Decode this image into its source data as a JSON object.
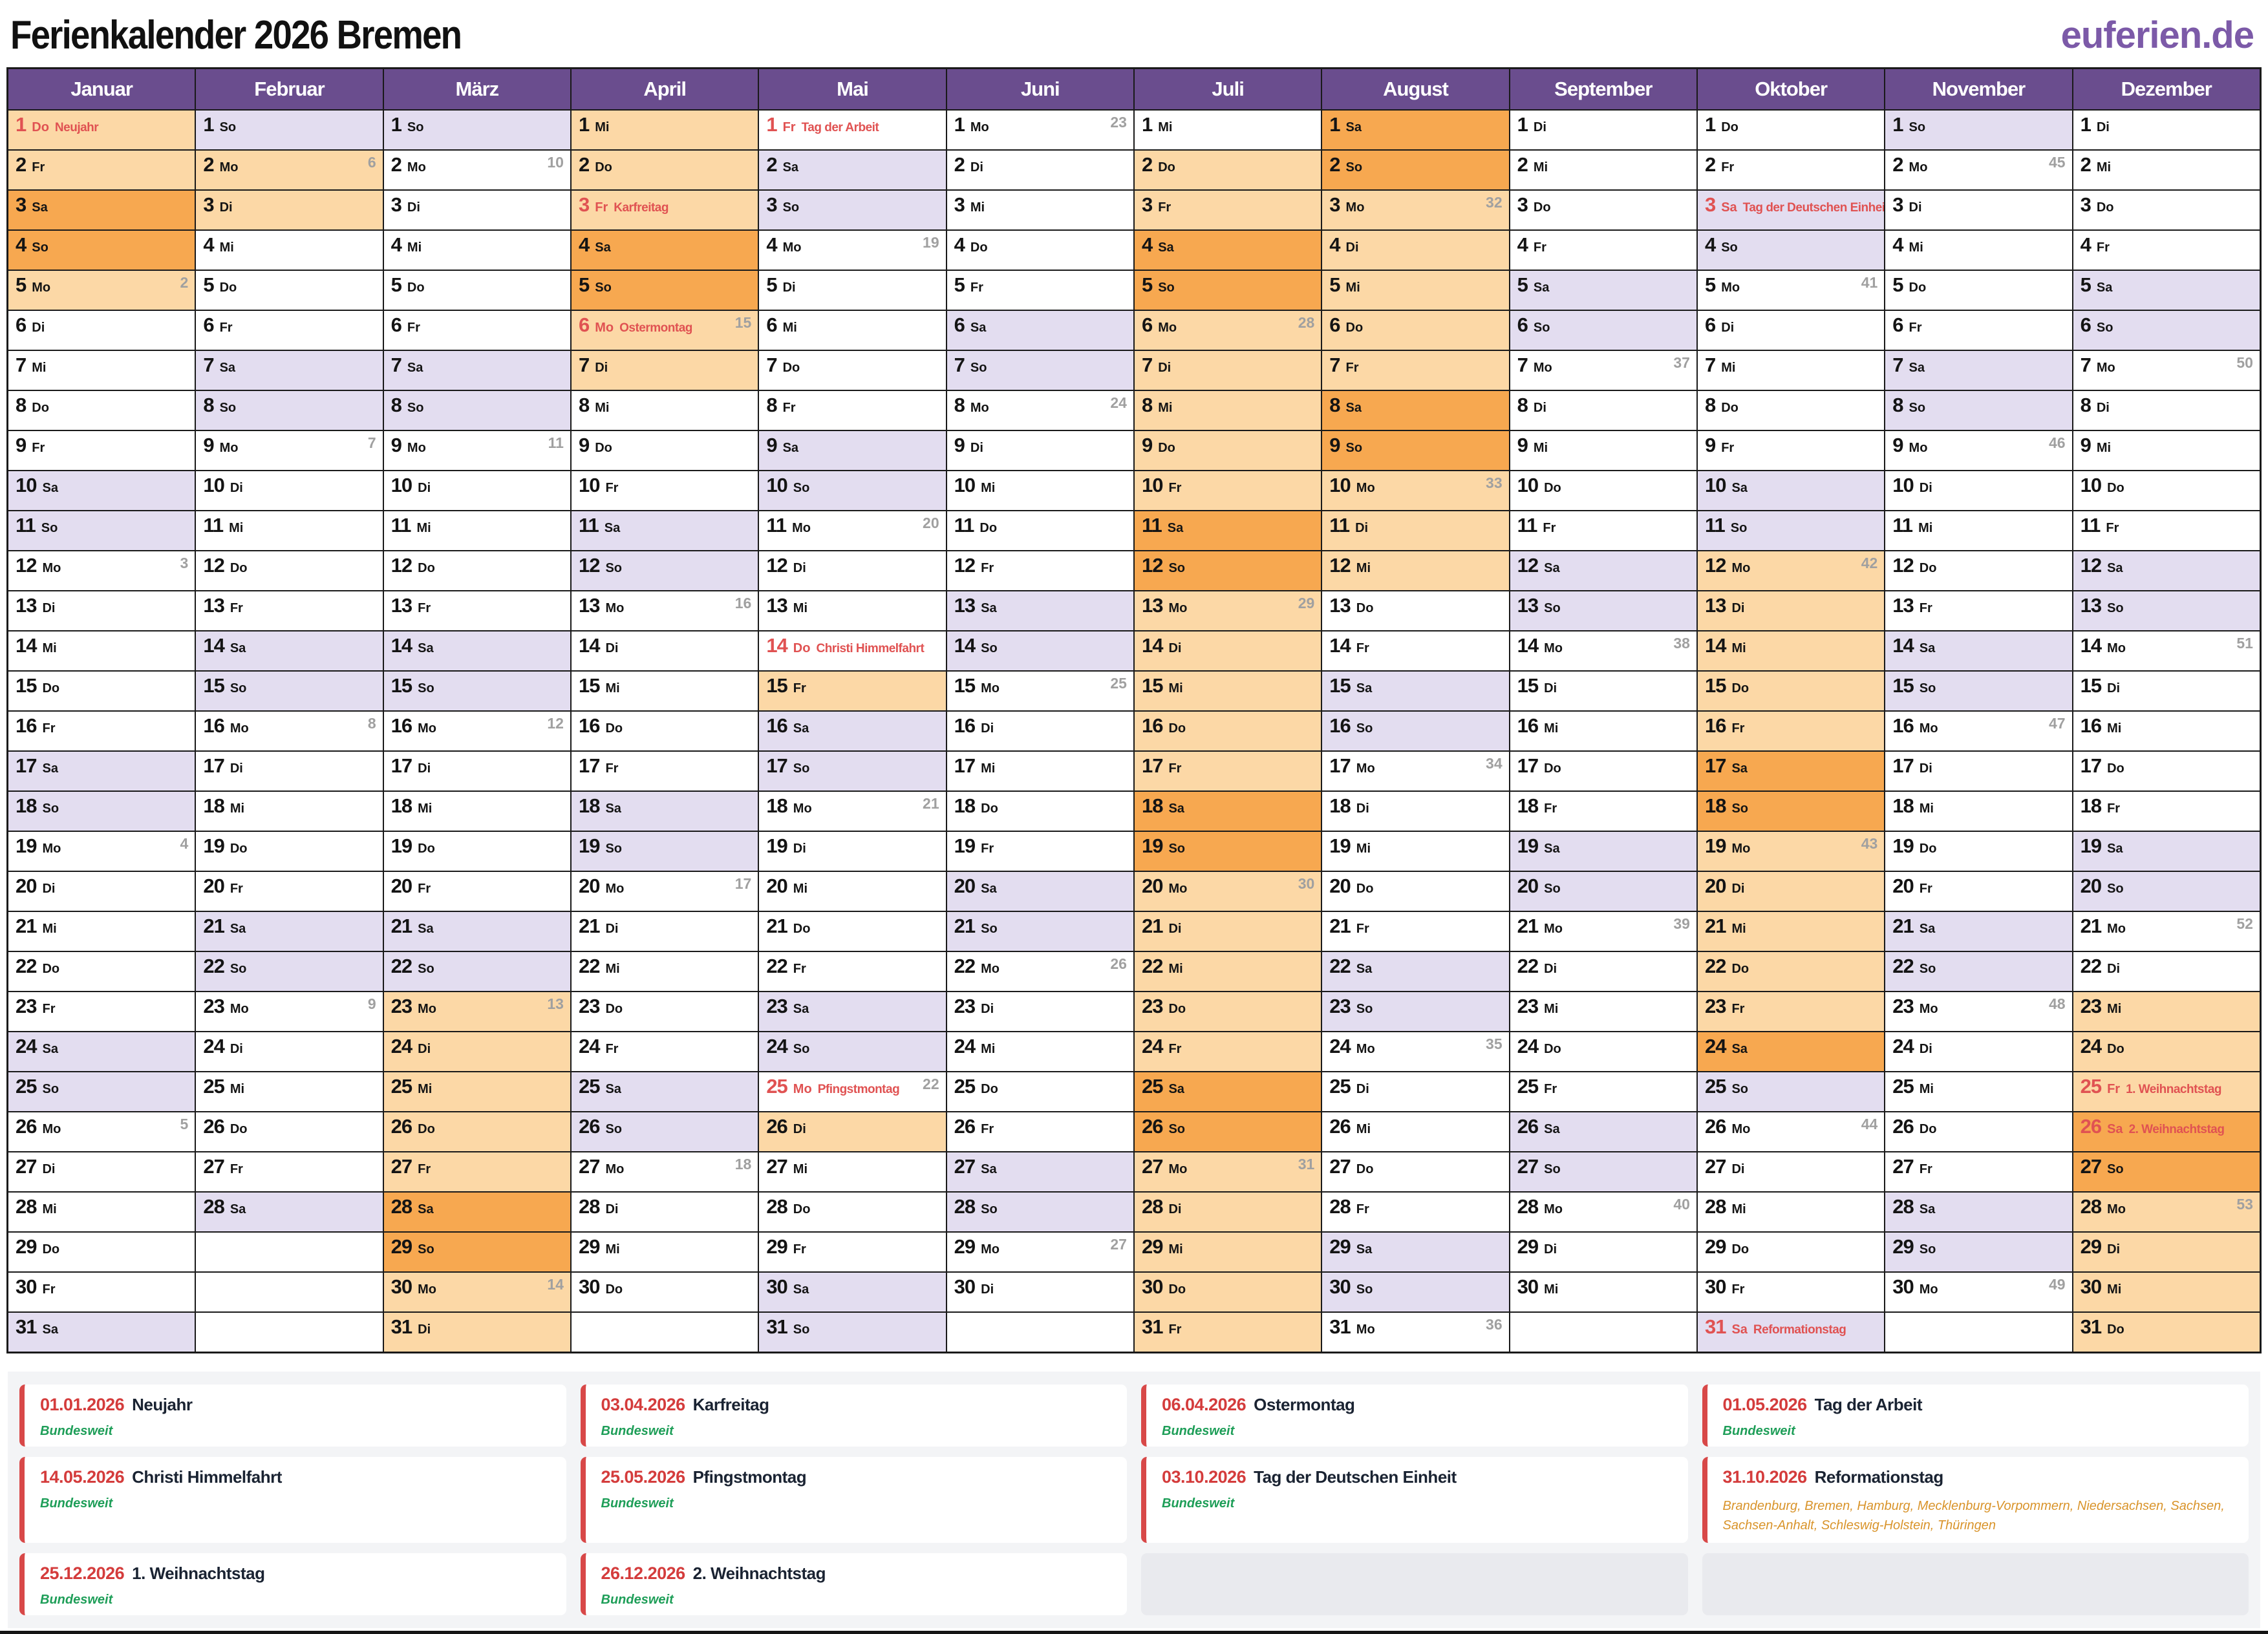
{
  "page": {
    "title": "Ferienkalender 2026 Bremen",
    "logo": "euferien.de"
  },
  "colors": {
    "title_text": "#111111",
    "header_purple": "#6a4d8e",
    "logo_purple": "#7c5aa8",
    "grid_line": "#1a1a1a",
    "weekend_bg": "#e3ddf0",
    "vacation_bg": "#fcd8a6",
    "vacation_weekend_bg": "#f7a850",
    "holiday_text": "#e05252",
    "week_number": "#a0a0a0",
    "legend_panel_bg": "#f3f4f6",
    "legend_card_bg": "#ffffff",
    "legend_card_border": "#d84848",
    "legend_date": "#d43c3c",
    "legend_name": "#1a2332",
    "legend_nationwide": "#1e9e58",
    "legend_states": "#d9942b",
    "legend_empty_bg": "#e9eaee"
  },
  "calendar": {
    "year": 2026,
    "weekday_abbr_by_getday": [
      "So",
      "Mo",
      "Di",
      "Mi",
      "Do",
      "Fr",
      "Sa"
    ],
    "months": [
      {
        "name": "Januar",
        "days": 31,
        "first_getday": 4,
        "weeks": {
          "5": 2,
          "12": 3,
          "19": 4,
          "26": 5
        },
        "holidays": {
          "1": "Neujahr"
        },
        "vacation_ranges": [
          [
            1,
            5
          ]
        ]
      },
      {
        "name": "Februar",
        "days": 28,
        "first_getday": 0,
        "weeks": {
          "2": 6,
          "9": 7,
          "16": 8,
          "23": 9
        },
        "holidays": {},
        "vacation_ranges": [
          [
            2,
            3
          ]
        ]
      },
      {
        "name": "März",
        "days": 31,
        "first_getday": 0,
        "weeks": {
          "2": 10,
          "9": 11,
          "16": 12,
          "23": 13,
          "30": 14
        },
        "holidays": {},
        "vacation_ranges": [
          [
            23,
            31
          ]
        ]
      },
      {
        "name": "April",
        "days": 30,
        "first_getday": 3,
        "weeks": {
          "6": 15,
          "13": 16,
          "20": 17,
          "27": 18
        },
        "holidays": {
          "3": "Karfreitag",
          "6": "Ostermontag"
        },
        "vacation_ranges": [
          [
            1,
            7
          ]
        ]
      },
      {
        "name": "Mai",
        "days": 31,
        "first_getday": 5,
        "weeks": {
          "4": 19,
          "11": 20,
          "18": 21,
          "25": 22
        },
        "holidays": {
          "1": "Tag der Arbeit",
          "14": "Christi Himmelfahrt",
          "25": "Pfingstmontag"
        },
        "vacation_ranges": [
          [
            15,
            15
          ],
          [
            26,
            26
          ]
        ]
      },
      {
        "name": "Juni",
        "days": 30,
        "first_getday": 1,
        "weeks": {
          "1": 23,
          "8": 24,
          "15": 25,
          "22": 26,
          "29": 27
        },
        "holidays": {},
        "vacation_ranges": []
      },
      {
        "name": "Juli",
        "days": 31,
        "first_getday": 3,
        "weeks": {
          "6": 28,
          "13": 29,
          "20": 30,
          "27": 31
        },
        "holidays": {},
        "vacation_ranges": [
          [
            2,
            31
          ]
        ]
      },
      {
        "name": "August",
        "days": 31,
        "first_getday": 6,
        "weeks": {
          "3": 32,
          "10": 33,
          "17": 34,
          "24": 35,
          "31": 36
        },
        "holidays": {},
        "vacation_ranges": [
          [
            1,
            12
          ]
        ]
      },
      {
        "name": "September",
        "days": 30,
        "first_getday": 2,
        "weeks": {
          "7": 37,
          "14": 38,
          "21": 39,
          "28": 40
        },
        "holidays": {},
        "vacation_ranges": []
      },
      {
        "name": "Oktober",
        "days": 31,
        "first_getday": 4,
        "weeks": {
          "5": 41,
          "12": 42,
          "19": 43,
          "26": 44
        },
        "holidays": {
          "3": "Tag der Deutschen Einheit",
          "31": "Reformationstag"
        },
        "vacation_ranges": [
          [
            12,
            24
          ]
        ]
      },
      {
        "name": "November",
        "days": 30,
        "first_getday": 0,
        "weeks": {
          "2": 45,
          "9": 46,
          "16": 47,
          "23": 48,
          "30": 49
        },
        "holidays": {},
        "vacation_ranges": []
      },
      {
        "name": "Dezember",
        "days": 31,
        "first_getday": 2,
        "weeks": {
          "7": 50,
          "14": 51,
          "21": 52,
          "28": 53
        },
        "holidays": {
          "25": "1. Weihnachtstag",
          "26": "2. Weihnachtstag"
        },
        "vacation_ranges": [
          [
            23,
            31
          ]
        ]
      }
    ]
  },
  "legend": {
    "items": [
      {
        "date": "01.01.2026",
        "name": "Neujahr",
        "scope": "Bundesweit",
        "scope_type": "nationwide"
      },
      {
        "date": "03.04.2026",
        "name": "Karfreitag",
        "scope": "Bundesweit",
        "scope_type": "nationwide"
      },
      {
        "date": "06.04.2026",
        "name": "Ostermontag",
        "scope": "Bundesweit",
        "scope_type": "nationwide"
      },
      {
        "date": "01.05.2026",
        "name": "Tag der Arbeit",
        "scope": "Bundesweit",
        "scope_type": "nationwide"
      },
      {
        "date": "14.05.2026",
        "name": "Christi Himmelfahrt",
        "scope": "Bundesweit",
        "scope_type": "nationwide"
      },
      {
        "date": "25.05.2026",
        "name": "Pfingstmontag",
        "scope": "Bundesweit",
        "scope_type": "nationwide"
      },
      {
        "date": "03.10.2026",
        "name": "Tag der Deutschen Einheit",
        "scope": "Bundesweit",
        "scope_type": "nationwide"
      },
      {
        "date": "31.10.2026",
        "name": "Reformationstag",
        "scope": "Brandenburg, Bremen, Hamburg, Mecklenburg-Vorpommern, Niedersachsen, Sachsen, Sachsen-Anhalt, Schleswig-Holstein, Thüringen",
        "scope_type": "states"
      },
      {
        "date": "25.12.2026",
        "name": "1. Weihnachtstag",
        "scope": "Bundesweit",
        "scope_type": "nationwide"
      },
      {
        "date": "26.12.2026",
        "name": "2. Weihnachtstag",
        "scope": "Bundesweit",
        "scope_type": "nationwide"
      }
    ],
    "empty_slots": 2
  }
}
